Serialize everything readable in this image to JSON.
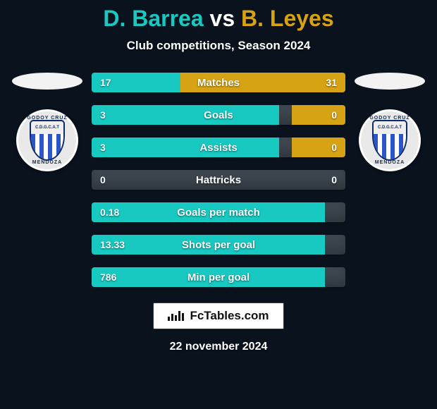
{
  "colors": {
    "background": "#09121d",
    "player1_accent": "#18c9c2",
    "player2_accent": "#d6a315",
    "text_light": "#ffffff",
    "row_track": "#3e4750",
    "oval": "#f2f2f2"
  },
  "header": {
    "player1": "D. Barrea",
    "vs": "vs",
    "player2": "B. Leyes",
    "subtitle": "Club competitions, Season 2024"
  },
  "club": {
    "top_text": "GODOY CRUZ",
    "inner_text": "C.D.G.C.A.T",
    "bottom_text": "MENDOZA"
  },
  "stats": [
    {
      "label": "Matches",
      "left_val": "17",
      "right_val": "31",
      "left_pct": 35,
      "right_pct": 65
    },
    {
      "label": "Goals",
      "left_val": "3",
      "right_val": "0",
      "left_pct": 74,
      "right_pct": 21
    },
    {
      "label": "Assists",
      "left_val": "3",
      "right_val": "0",
      "left_pct": 74,
      "right_pct": 21
    },
    {
      "label": "Hattricks",
      "left_val": "0",
      "right_val": "0",
      "left_pct": 0,
      "right_pct": 0
    },
    {
      "label": "Goals per match",
      "left_val": "0.18",
      "right_val": "",
      "left_pct": 92,
      "right_pct": 0
    },
    {
      "label": "Shots per goal",
      "left_val": "13.33",
      "right_val": "",
      "left_pct": 92,
      "right_pct": 0
    },
    {
      "label": "Min per goal",
      "left_val": "786",
      "right_val": "",
      "left_pct": 92,
      "right_pct": 0
    }
  ],
  "footer": {
    "brand": "FcTables.com",
    "date": "22 november 2024"
  }
}
